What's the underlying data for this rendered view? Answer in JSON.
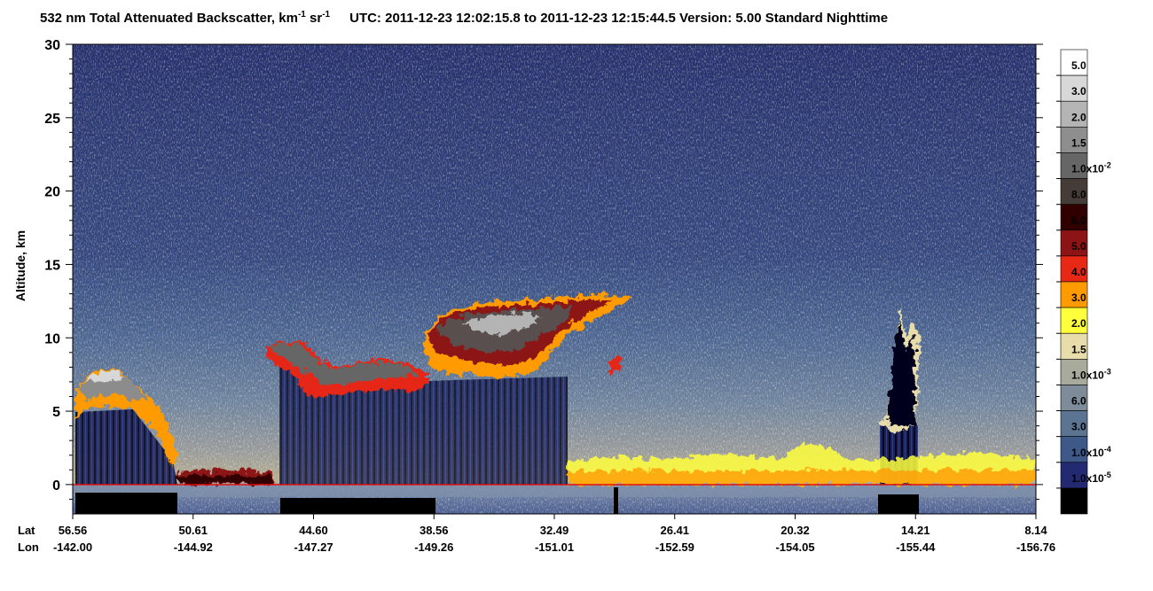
{
  "chart_data": {
    "type": "lidar-curtain",
    "title": {
      "main": "532 nm Total Attenuated Backscatter, km",
      "sup1": "-1",
      "mid": " sr",
      "sup2": "-1",
      "info": "UTC:  2011-12-23 12:02:15.8  to  2011-12-23 12:15:44.5    Version: 5.00  Standard  Nighttime"
    },
    "y_label": "Altitude, km",
    "ylim": [
      -2,
      30
    ],
    "yticks": [
      0,
      5,
      10,
      15,
      20,
      25,
      30
    ],
    "x_row_labels": [
      "Lat",
      "Lon"
    ],
    "lat": [
      "56.56",
      "50.61",
      "44.60",
      "38.56",
      "32.49",
      "26.41",
      "20.32",
      "14.21",
      "8.14"
    ],
    "lon": [
      "-142.00",
      "-144.92",
      "-147.27",
      "-149.26",
      "-151.01",
      "-152.59",
      "-154.05",
      "-155.44",
      "-156.76"
    ],
    "colorbar": {
      "colors": [
        "#ffffff",
        "#d8d8d8",
        "#b4b4b4",
        "#8e8e8e",
        "#666666",
        "#463c37",
        "#300000",
        "#8c1414",
        "#e62814",
        "#ff9b00",
        "#ffff3c",
        "#e8dcaa",
        "#a8aa9b",
        "#7d8c98",
        "#5b7491",
        "#3e5888",
        "#242a72",
        "#000000"
      ],
      "labels": [
        {
          "text": "5.0"
        },
        {
          "text": "3.0"
        },
        {
          "text": "2.0"
        },
        {
          "text": "1.5"
        },
        {
          "text": "1.0x10",
          "sup": "-2"
        },
        {
          "text": "8.0"
        },
        {
          "text": "6.0"
        },
        {
          "text": "5.0"
        },
        {
          "text": "4.0"
        },
        {
          "text": "3.0"
        },
        {
          "text": "2.0"
        },
        {
          "text": "1.5"
        },
        {
          "text": "1.0x10",
          "sup": "-3"
        },
        {
          "text": "6.0"
        },
        {
          "text": "3.0"
        },
        {
          "text": "1.0x10",
          "sup": "-4"
        },
        {
          "text": "1.0x10",
          "sup": "-5"
        }
      ]
    }
  }
}
